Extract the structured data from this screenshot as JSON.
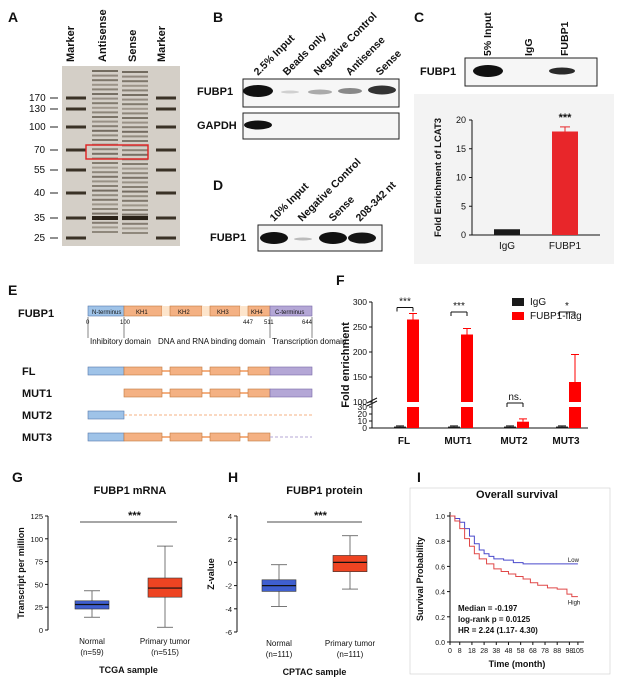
{
  "panels": {
    "A": {
      "letter": "A",
      "lane_labels": [
        "Marker",
        "Antisense",
        "Sense",
        "Marker"
      ],
      "mw_ticks": [
        "170",
        "130",
        "100",
        "70",
        "55",
        "40",
        "35",
        "25"
      ]
    },
    "B": {
      "letter": "B",
      "lane_labels": [
        "2.5% Input",
        "Beads only",
        "Negative Control",
        "Antisense",
        "Sense"
      ],
      "rows": [
        "FUBP1",
        "GAPDH"
      ]
    },
    "C": {
      "letter": "C",
      "lane_labels": [
        "5% Input",
        "IgG",
        "FUBP1"
      ],
      "row": "FUBP1",
      "significance": "***"
    },
    "D": {
      "letter": "D",
      "lane_labels": [
        "10% Input",
        "Negative Control",
        "Sense",
        "208-342 nt"
      ],
      "row": "FUBP1"
    },
    "E": {
      "letter": "E",
      "protein": "FUBP1",
      "domains": [
        "N-terminus",
        "KH1",
        "KH2",
        "KH3",
        "KH4",
        "C-terminus"
      ],
      "positions": [
        "0",
        "100",
        "447",
        "511",
        "644"
      ],
      "regions": [
        "Inhibitory domain",
        "DNA and RNA binding domain",
        "Transcription domain"
      ],
      "constructs": [
        "FL",
        "MUT1",
        "MUT2",
        "MUT3"
      ]
    },
    "F": {
      "letter": "F"
    },
    "G": {
      "letter": "G"
    },
    "H": {
      "letter": "H"
    },
    "I": {
      "letter": "I"
    }
  },
  "chart_data": [
    {
      "panel": "C",
      "type": "bar",
      "categories": [
        "IgG",
        "FUBP1"
      ],
      "values": [
        1,
        18
      ],
      "errors": [
        0,
        0.8
      ],
      "ylabel": "Fold Enrichment of LCAT3",
      "yticks": [
        "0",
        "5",
        "10",
        "15",
        "20"
      ],
      "ylim": [
        0,
        20
      ],
      "annotations": [
        "***"
      ],
      "colors": [
        "#1a1a1a",
        "#e8262a"
      ]
    },
    {
      "panel": "F",
      "type": "bar",
      "categories": [
        "FL",
        "MUT1",
        "MUT2",
        "MUT3"
      ],
      "series": [
        {
          "name": "IgG",
          "values": [
            2,
            2,
            2,
            2
          ],
          "errors": [
            1,
            1,
            1,
            1
          ],
          "color": "#1a1a1a"
        },
        {
          "name": "FUBP1-flag",
          "values": [
            265,
            235,
            9,
            140
          ],
          "errors": [
            12,
            12,
            4,
            55
          ],
          "color": "#ff0000"
        }
      ],
      "ylabel": "Fold enrichment",
      "yticks": [
        "0",
        "10",
        "20",
        "30",
        "100",
        "150",
        "200",
        "250",
        "300"
      ],
      "annotations": [
        "***",
        "***",
        "ns.",
        "*"
      ],
      "legend": "top-right"
    },
    {
      "panel": "G",
      "type": "box",
      "title": "FUBP1 mRNA",
      "categories": [
        "Normal",
        "Primary tumor"
      ],
      "n_labels": [
        "(n=59)",
        "(n=515)"
      ],
      "xlabel": "TCGA sample",
      "ylabel": "Transcript per million",
      "yticks": [
        "0",
        "25",
        "50",
        "75",
        "100",
        "125"
      ],
      "ylim": [
        0,
        125
      ],
      "boxes": [
        {
          "min": 14,
          "q1": 23,
          "median": 28,
          "q3": 32,
          "max": 43,
          "color": "#3f5fd0"
        },
        {
          "min": 3,
          "q1": 36,
          "median": 46,
          "q3": 57,
          "max": 92,
          "color": "#ee4422"
        }
      ],
      "annotations": [
        "***"
      ]
    },
    {
      "panel": "H",
      "type": "box",
      "title": "FUBP1 protein",
      "categories": [
        "Normal",
        "Primary tumor"
      ],
      "n_labels": [
        "(n=111)",
        "(n=111)"
      ],
      "xlabel": "CPTAC sample",
      "ylabel": "Z-value",
      "yticks": [
        "-6",
        "-4",
        "-2",
        "0",
        "2",
        "4"
      ],
      "ylim": [
        -6,
        4
      ],
      "boxes": [
        {
          "min": -3.8,
          "q1": -2.5,
          "median": -2.0,
          "q3": -1.5,
          "max": -0.2,
          "color": "#3f5fd0"
        },
        {
          "min": -2.3,
          "q1": -0.8,
          "median": 0.0,
          "q3": 0.6,
          "max": 2.3,
          "color": "#ee4422"
        }
      ],
      "annotations": [
        "***"
      ]
    },
    {
      "panel": "I",
      "type": "line",
      "title": "Overall survival",
      "xlabel": "Time (month)",
      "ylabel": "Survival Probability",
      "xticks": [
        "0",
        "8",
        "18",
        "28",
        "38",
        "48",
        "58",
        "68",
        "78",
        "88",
        "98",
        "105"
      ],
      "yticks": [
        "0.0",
        "0.2",
        "0.4",
        "0.6",
        "0.8",
        "1.0"
      ],
      "xlim": [
        0,
        110
      ],
      "ylim": [
        0,
        1
      ],
      "series": [
        {
          "name": "Low",
          "color": "#4a4acc",
          "x": [
            0,
            4,
            8,
            12,
            16,
            20,
            24,
            28,
            32,
            36,
            44,
            52,
            60,
            105
          ],
          "y": [
            1.0,
            0.98,
            0.95,
            0.9,
            0.84,
            0.78,
            0.73,
            0.7,
            0.68,
            0.66,
            0.65,
            0.63,
            0.62,
            0.62
          ]
        },
        {
          "name": "High",
          "color": "#e04848",
          "x": [
            0,
            4,
            8,
            12,
            16,
            20,
            24,
            30,
            36,
            42,
            48,
            54,
            60,
            66,
            72,
            80,
            88,
            96,
            100,
            105
          ],
          "y": [
            1.0,
            0.96,
            0.9,
            0.82,
            0.76,
            0.7,
            0.66,
            0.62,
            0.58,
            0.56,
            0.54,
            0.52,
            0.5,
            0.47,
            0.45,
            0.43,
            0.42,
            0.38,
            0.36,
            0.36
          ]
        }
      ],
      "stats": [
        "Median = -0.197",
        "log-rank p = 0.0125",
        "HR = 2.24 (1.17- 4.30)"
      ]
    }
  ]
}
